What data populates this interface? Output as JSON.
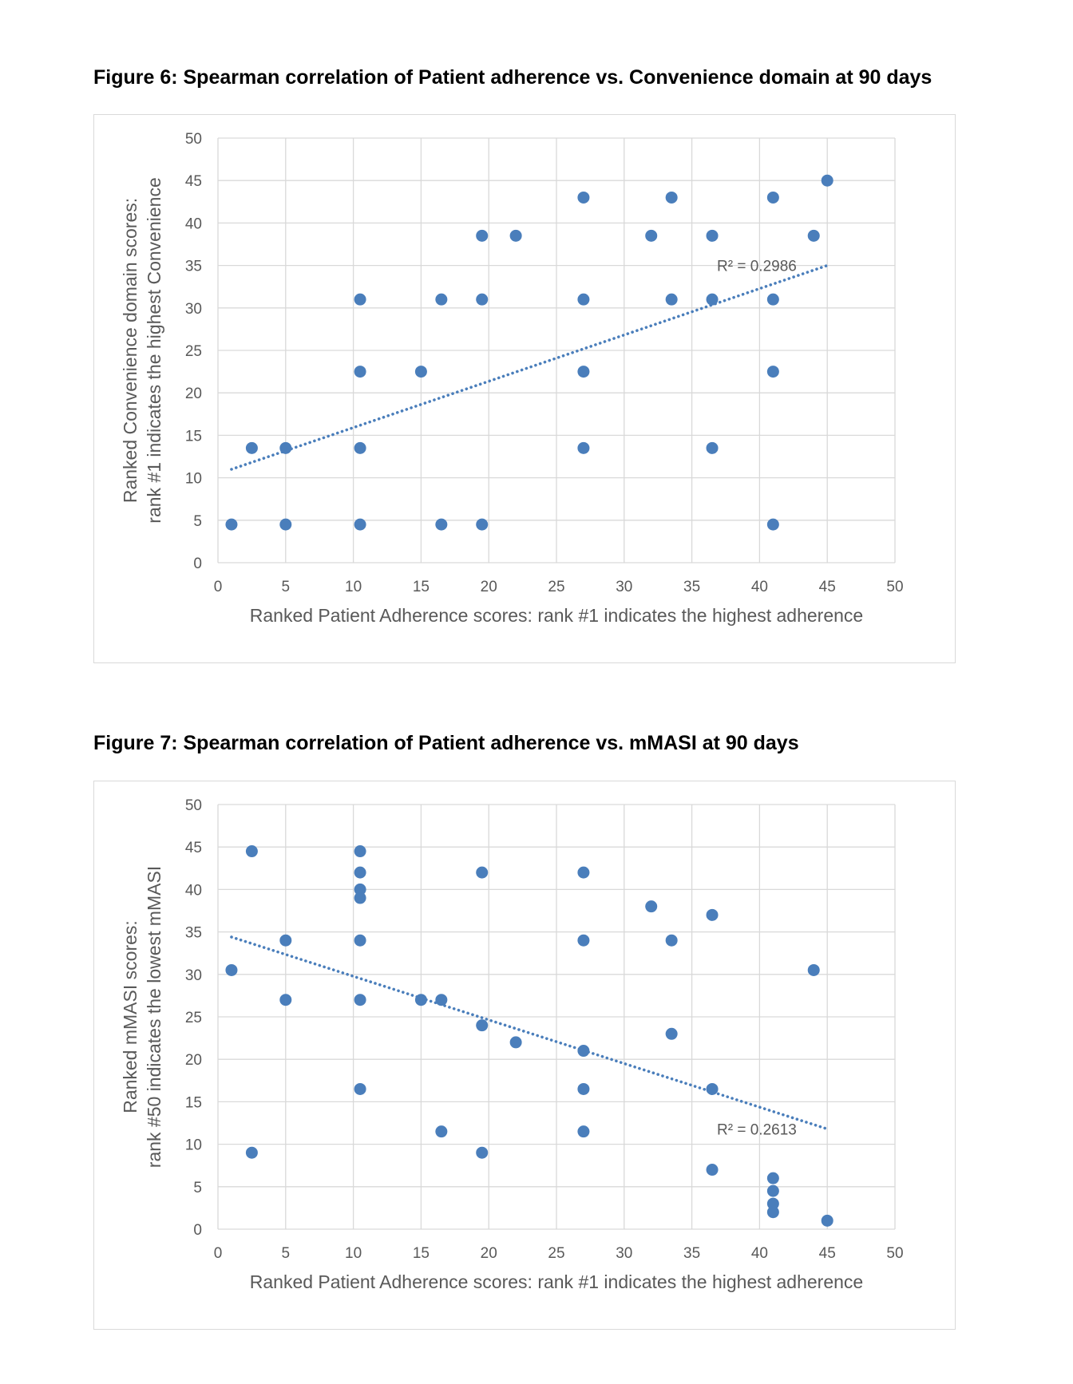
{
  "colors": {
    "marker": "#4a7ebb",
    "trendline": "#4a7ebb",
    "grid": "#d9d9d9",
    "text": "#595959"
  },
  "figures": [
    {
      "title": "Figure 6: Spearman correlation of Patient adherence vs. Convenience domain at 90 days"
    },
    {
      "title": "Figure 7: Spearman correlation of Patient adherence vs. mMASI at 90 days"
    }
  ],
  "chart_data": [
    {
      "type": "scatter",
      "title": "",
      "xlabel": "Ranked Patient Adherence scores: rank #1 indicates the highest adherence",
      "ylabel_lines": [
        "Ranked Convenience domain scores:",
        "rank #1 indicates the highest Convenience"
      ],
      "xlim": [
        0,
        50
      ],
      "ylim": [
        0,
        50
      ],
      "x_ticks": [
        "0",
        "5",
        "10",
        "15",
        "20",
        "25",
        "30",
        "35",
        "40",
        "45",
        "50"
      ],
      "y_ticks": [
        "0",
        "5",
        "10",
        "15",
        "20",
        "25",
        "30",
        "35",
        "40",
        "45",
        "50"
      ],
      "grid": true,
      "legend": "none",
      "points": [
        {
          "x": 1,
          "y": 4.5
        },
        {
          "x": 5,
          "y": 4.5
        },
        {
          "x": 10.5,
          "y": 4.5
        },
        {
          "x": 16.5,
          "y": 4.5
        },
        {
          "x": 19.5,
          "y": 4.5
        },
        {
          "x": 41,
          "y": 4.5
        },
        {
          "x": 2.5,
          "y": 13.5
        },
        {
          "x": 5,
          "y": 13.5
        },
        {
          "x": 10.5,
          "y": 13.5
        },
        {
          "x": 27,
          "y": 13.5
        },
        {
          "x": 36.5,
          "y": 13.5
        },
        {
          "x": 10.5,
          "y": 22.5
        },
        {
          "x": 15,
          "y": 22.5
        },
        {
          "x": 27,
          "y": 22.5
        },
        {
          "x": 41,
          "y": 22.5
        },
        {
          "x": 10.5,
          "y": 31
        },
        {
          "x": 16.5,
          "y": 31
        },
        {
          "x": 19.5,
          "y": 31
        },
        {
          "x": 27,
          "y": 31
        },
        {
          "x": 33.5,
          "y": 31
        },
        {
          "x": 36.5,
          "y": 31
        },
        {
          "x": 41,
          "y": 31
        },
        {
          "x": 19.5,
          "y": 38.5
        },
        {
          "x": 22,
          "y": 38.5
        },
        {
          "x": 32,
          "y": 38.5
        },
        {
          "x": 36.5,
          "y": 38.5
        },
        {
          "x": 44,
          "y": 38.5
        },
        {
          "x": 27,
          "y": 43
        },
        {
          "x": 33.5,
          "y": 43
        },
        {
          "x": 41,
          "y": 43
        },
        {
          "x": 45,
          "y": 45
        }
      ],
      "trendline": {
        "x_start": 1,
        "y_start": 11,
        "x_end": 45,
        "y_end": 35
      },
      "r2_label": "R² = 0.2986"
    },
    {
      "type": "scatter",
      "title": "",
      "xlabel": "Ranked Patient Adherence scores: rank #1 indicates the highest adherence",
      "ylabel_lines": [
        "Ranked mMASI scores:",
        "rank #50 indicates the lowest mMASI"
      ],
      "xlim": [
        0,
        50
      ],
      "ylim": [
        0,
        50
      ],
      "x_ticks": [
        "0",
        "5",
        "10",
        "15",
        "20",
        "25",
        "30",
        "35",
        "40",
        "45",
        "50"
      ],
      "y_ticks": [
        "0",
        "5",
        "10",
        "15",
        "20",
        "25",
        "30",
        "35",
        "40",
        "45",
        "50"
      ],
      "grid": true,
      "legend": "none",
      "points": [
        {
          "x": 1,
          "y": 30.5
        },
        {
          "x": 2.5,
          "y": 44.5
        },
        {
          "x": 2.5,
          "y": 9
        },
        {
          "x": 5,
          "y": 34
        },
        {
          "x": 5,
          "y": 27
        },
        {
          "x": 10.5,
          "y": 44.5
        },
        {
          "x": 10.5,
          "y": 42
        },
        {
          "x": 10.5,
          "y": 40
        },
        {
          "x": 10.5,
          "y": 39
        },
        {
          "x": 10.5,
          "y": 34
        },
        {
          "x": 10.5,
          "y": 27
        },
        {
          "x": 10.5,
          "y": 16.5
        },
        {
          "x": 15,
          "y": 27
        },
        {
          "x": 16.5,
          "y": 27
        },
        {
          "x": 16.5,
          "y": 11.5
        },
        {
          "x": 19.5,
          "y": 42
        },
        {
          "x": 19.5,
          "y": 24
        },
        {
          "x": 19.5,
          "y": 9
        },
        {
          "x": 22,
          "y": 22
        },
        {
          "x": 27,
          "y": 42
        },
        {
          "x": 27,
          "y": 34
        },
        {
          "x": 27,
          "y": 21
        },
        {
          "x": 27,
          "y": 16.5
        },
        {
          "x": 27,
          "y": 11.5
        },
        {
          "x": 32,
          "y": 38
        },
        {
          "x": 33.5,
          "y": 34
        },
        {
          "x": 33.5,
          "y": 23
        },
        {
          "x": 36.5,
          "y": 37
        },
        {
          "x": 36.5,
          "y": 16.5
        },
        {
          "x": 36.5,
          "y": 7
        },
        {
          "x": 41,
          "y": 6
        },
        {
          "x": 41,
          "y": 4.5
        },
        {
          "x": 41,
          "y": 3
        },
        {
          "x": 41,
          "y": 2
        },
        {
          "x": 44,
          "y": 30.5
        },
        {
          "x": 45,
          "y": 1
        }
      ],
      "trendline": {
        "x_start": 1,
        "y_start": 34.4,
        "x_end": 45,
        "y_end": 11.8
      },
      "r2_label": "R² = 0.2613"
    }
  ]
}
